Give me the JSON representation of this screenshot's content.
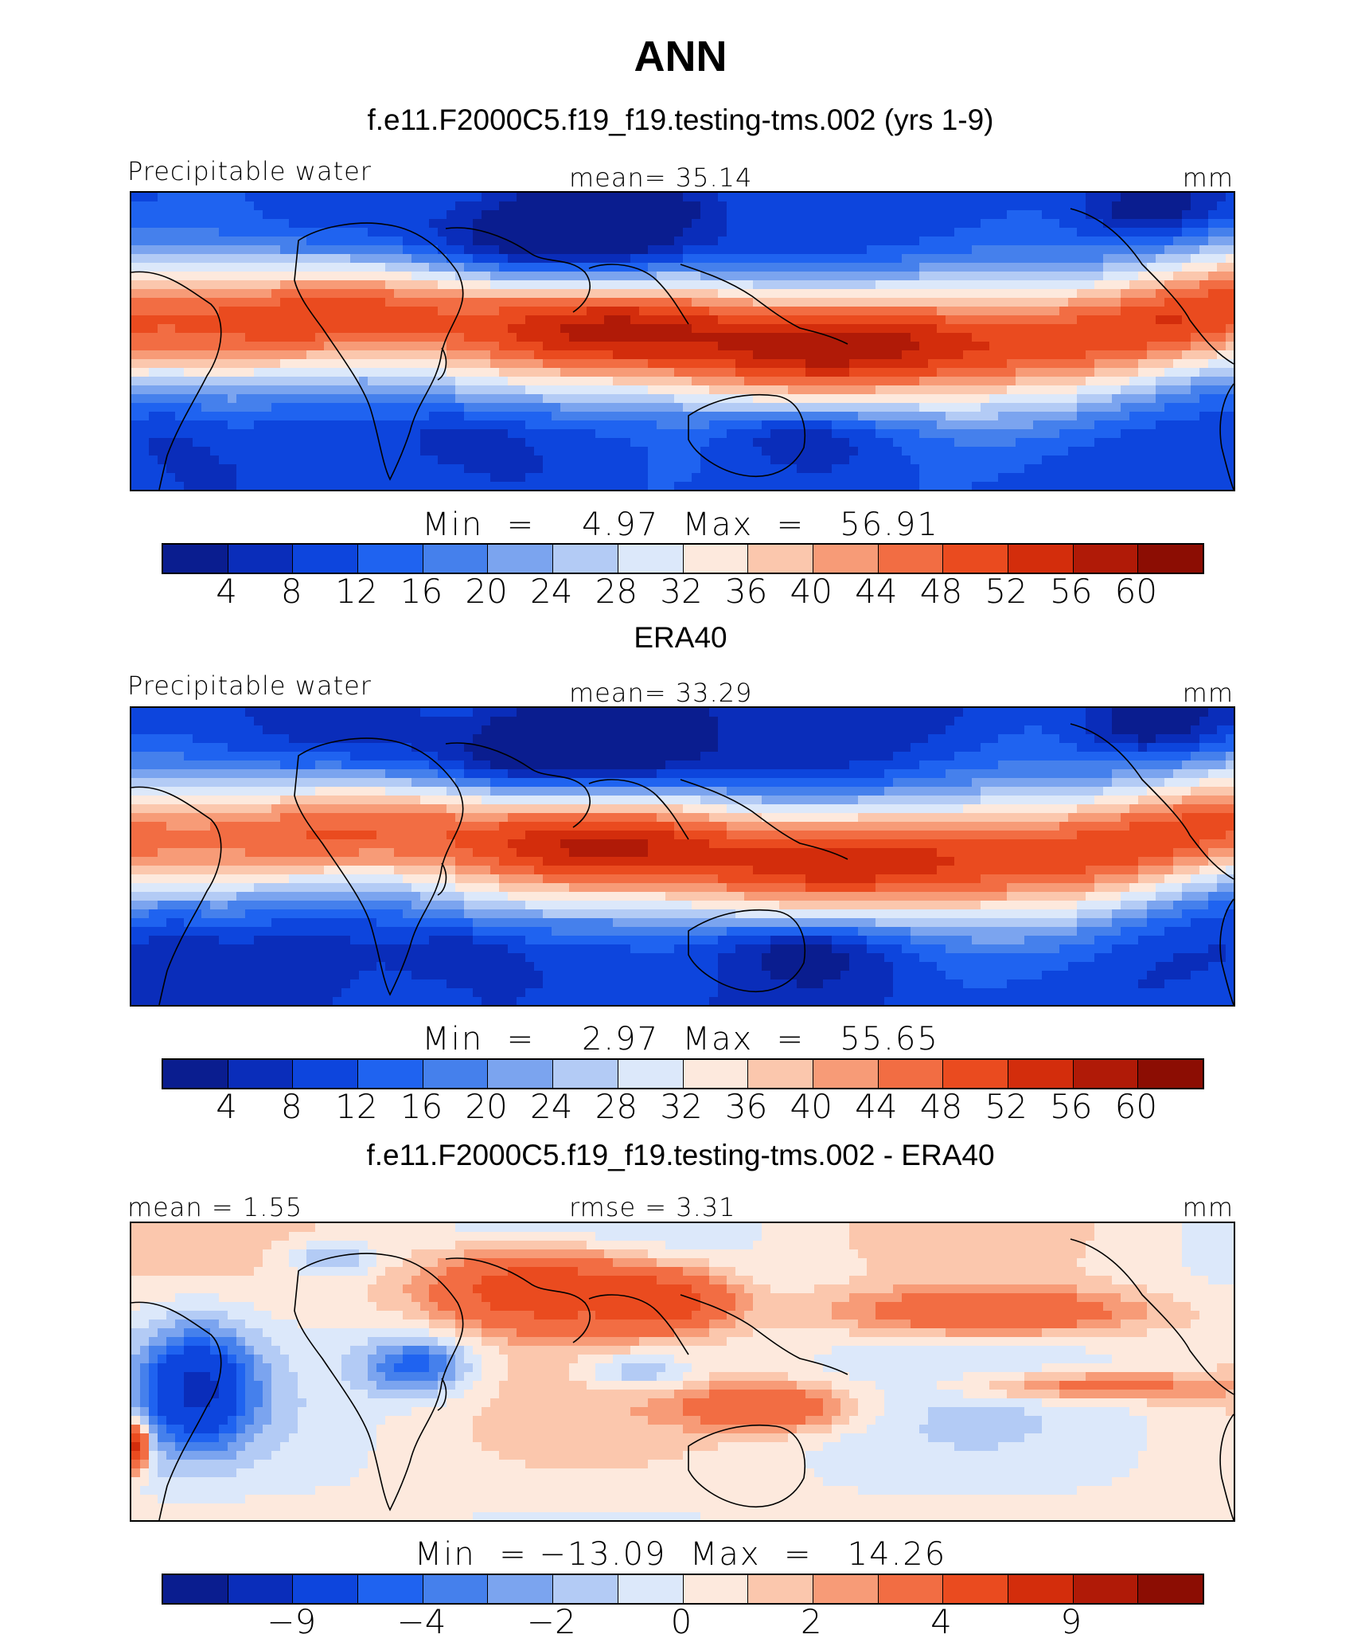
{
  "title": "ANN",
  "colors": [
    "#0a1d8f",
    "#0a2dba",
    "#0d45dd",
    "#1f63f0",
    "#4580ec",
    "#7ba4ef",
    "#b3cbf5",
    "#dce8fa",
    "#fde9dd",
    "#fbc7ad",
    "#f79b77",
    "#f26d43",
    "#ea4b1f",
    "#d32d0c",
    "#b01a07",
    "#8c0d03"
  ],
  "colorbar_levels": [
    "4",
    "8",
    "12",
    "16",
    "20",
    "24",
    "28",
    "32",
    "36",
    "40",
    "44",
    "48",
    "52",
    "56",
    "60"
  ],
  "diff_tick_labels": [
    "−9",
    "−4",
    "−2",
    "0",
    "2",
    "4",
    "9"
  ],
  "panels": {
    "model": {
      "case_title": "f.e11.F2000C5.f19_f19.testing-tms.002 (yrs 1-9)",
      "variable": "Precipitable water",
      "mean_text": "mean=  35.14",
      "units": "mm",
      "min_max_text": "Min  =    4.97  Max  =   56.91"
    },
    "obs": {
      "case_title": "ERA40",
      "variable": "Precipitable water",
      "mean_text": "mean=  33.29",
      "units": "mm",
      "min_max_text": "Min  =    2.97  Max  =   55.65"
    },
    "diff": {
      "case_title": "f.e11.F2000C5.f19_f19.testing-tms.002 - ERA40",
      "mean_text": "mean =    1.55",
      "rmse_text": "rmse =    3.31",
      "units": "mm",
      "min_max_text": "Min  = −13.09  Max  =   14.26"
    }
  },
  "chart_data": [
    {
      "type": "heatmap",
      "title": "f.e11.F2000C5.f19_f19.testing-tms.002 (yrs 1-9)",
      "variable": "Precipitable water",
      "units": "mm",
      "mean": 35.14,
      "min": 4.97,
      "max": 56.91,
      "levels": [
        4,
        8,
        12,
        16,
        20,
        24,
        28,
        32,
        36,
        40,
        44,
        48,
        52,
        56,
        60
      ],
      "pattern": "tropical-maximum",
      "region": "tropics, South America to Pacific"
    },
    {
      "type": "heatmap",
      "title": "ERA40",
      "variable": "Precipitable water",
      "units": "mm",
      "mean": 33.29,
      "min": 2.97,
      "max": 55.65,
      "levels": [
        4,
        8,
        12,
        16,
        20,
        24,
        28,
        32,
        36,
        40,
        44,
        48,
        52,
        56,
        60
      ],
      "pattern": "tropical-maximum"
    },
    {
      "type": "heatmap",
      "title": "f.e11.F2000C5.f19_f19.testing-tms.002 - ERA40",
      "units": "mm",
      "mean": 1.55,
      "rmse": 3.31,
      "min": -13.09,
      "max": 14.26,
      "levels": [
        -9,
        -4,
        -2,
        0,
        2,
        4,
        9
      ],
      "pattern": "difference"
    }
  ]
}
